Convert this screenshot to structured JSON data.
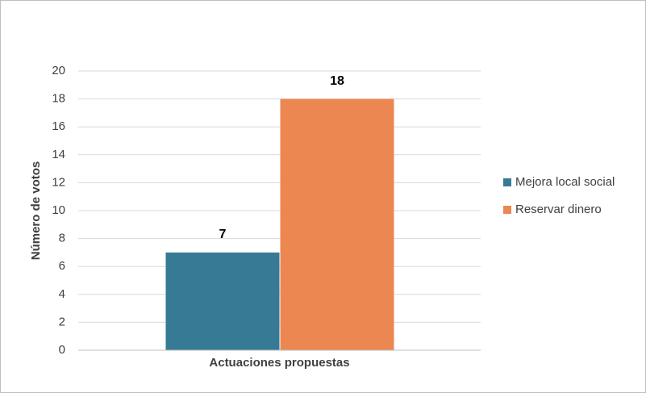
{
  "chart_data": {
    "type": "bar",
    "categories": [
      "Actuaciones propuestas"
    ],
    "series": [
      {
        "name": "Mejora local social",
        "color": "#367a96",
        "values": [
          7
        ]
      },
      {
        "name": "Reservar dinero",
        "color": "#ec8751",
        "values": [
          18
        ]
      }
    ],
    "ylabel": "Número de votos",
    "ylim": [
      0,
      20
    ],
    "yticks": [
      0,
      2,
      4,
      6,
      8,
      10,
      12,
      14,
      16,
      18,
      20
    ],
    "grid": true,
    "legend": "right",
    "data_labels": true
  }
}
